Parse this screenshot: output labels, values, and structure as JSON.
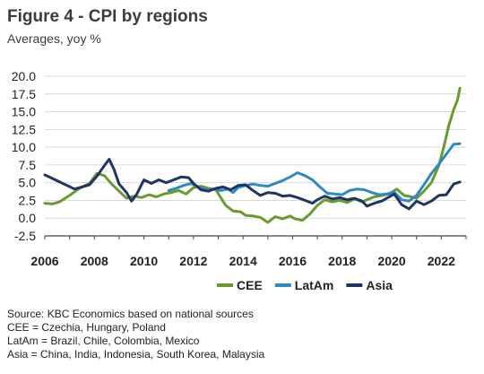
{
  "header": {
    "title": "Figure 4 - CPI by regions",
    "subtitle": "Averages, yoy %"
  },
  "chart_data": {
    "type": "line",
    "title": "Figure 4 - CPI by regions",
    "subtitle": "Averages, yoy %",
    "xlabel": "",
    "ylabel": "",
    "ylim": [
      -2.5,
      20.0
    ],
    "xlim": [
      2006,
      2023
    ],
    "yticks": [
      "20.0",
      "17.5",
      "15.0",
      "12.5",
      "10.0",
      "7.5",
      "5.0",
      "2.5",
      "0.0",
      "-2.5"
    ],
    "xticks": [
      "2006",
      "2008",
      "2010",
      "2012",
      "2014",
      "2016",
      "2018",
      "2020",
      "2022"
    ],
    "grid": "horizontal",
    "legend_position": "bottom",
    "series": [
      {
        "name": "CEE",
        "color": "#6a9a2e",
        "points": [
          [
            2006.0,
            2.1
          ],
          [
            2006.3,
            2.0
          ],
          [
            2006.6,
            2.3
          ],
          [
            2007.0,
            3.2
          ],
          [
            2007.4,
            4.2
          ],
          [
            2007.8,
            4.9
          ],
          [
            2008.1,
            6.3
          ],
          [
            2008.4,
            6.0
          ],
          [
            2008.7,
            4.8
          ],
          [
            2009.0,
            3.8
          ],
          [
            2009.3,
            2.8
          ],
          [
            2009.6,
            3.1
          ],
          [
            2009.9,
            2.9
          ],
          [
            2010.2,
            3.3
          ],
          [
            2010.5,
            3.0
          ],
          [
            2010.8,
            3.4
          ],
          [
            2011.1,
            3.6
          ],
          [
            2011.4,
            3.9
          ],
          [
            2011.7,
            3.4
          ],
          [
            2012.0,
            4.3
          ],
          [
            2012.3,
            4.5
          ],
          [
            2012.6,
            4.2
          ],
          [
            2012.9,
            4.0
          ],
          [
            2013.1,
            2.9
          ],
          [
            2013.3,
            1.8
          ],
          [
            2013.6,
            1.0
          ],
          [
            2013.9,
            0.9
          ],
          [
            2014.1,
            0.4
          ],
          [
            2014.4,
            0.3
          ],
          [
            2014.7,
            0.1
          ],
          [
            2015.0,
            -0.6
          ],
          [
            2015.3,
            0.2
          ],
          [
            2015.6,
            -0.1
          ],
          [
            2015.9,
            0.3
          ],
          [
            2016.1,
            -0.1
          ],
          [
            2016.4,
            -0.3
          ],
          [
            2016.7,
            0.6
          ],
          [
            2017.0,
            1.8
          ],
          [
            2017.3,
            2.6
          ],
          [
            2017.6,
            2.3
          ],
          [
            2017.9,
            2.5
          ],
          [
            2018.2,
            2.2
          ],
          [
            2018.5,
            2.7
          ],
          [
            2018.8,
            2.3
          ],
          [
            2019.0,
            2.6
          ],
          [
            2019.3,
            3.0
          ],
          [
            2019.6,
            3.2
          ],
          [
            2019.9,
            3.4
          ],
          [
            2020.2,
            4.1
          ],
          [
            2020.5,
            3.2
          ],
          [
            2020.8,
            3.0
          ],
          [
            2021.0,
            2.8
          ],
          [
            2021.3,
            3.8
          ],
          [
            2021.6,
            5.0
          ],
          [
            2021.9,
            7.4
          ],
          [
            2022.1,
            10.0
          ],
          [
            2022.3,
            13.0
          ],
          [
            2022.5,
            15.3
          ],
          [
            2022.65,
            16.6
          ],
          [
            2022.75,
            18.3
          ]
        ]
      },
      {
        "name": "LatAm",
        "color": "#2e8bbf",
        "points": [
          [
            2011.0,
            3.9
          ],
          [
            2011.3,
            4.2
          ],
          [
            2011.6,
            4.6
          ],
          [
            2011.9,
            4.9
          ],
          [
            2012.2,
            4.4
          ],
          [
            2012.5,
            4.0
          ],
          [
            2012.8,
            4.1
          ],
          [
            2013.1,
            3.9
          ],
          [
            2013.4,
            4.1
          ],
          [
            2013.6,
            3.6
          ],
          [
            2013.8,
            4.3
          ],
          [
            2014.1,
            4.6
          ],
          [
            2014.4,
            4.8
          ],
          [
            2014.7,
            4.6
          ],
          [
            2015.0,
            4.5
          ],
          [
            2015.3,
            4.9
          ],
          [
            2015.6,
            5.3
          ],
          [
            2015.9,
            5.8
          ],
          [
            2016.2,
            6.4
          ],
          [
            2016.5,
            6.0
          ],
          [
            2016.8,
            5.4
          ],
          [
            2017.1,
            4.4
          ],
          [
            2017.4,
            3.5
          ],
          [
            2017.7,
            3.4
          ],
          [
            2018.0,
            3.3
          ],
          [
            2018.3,
            3.9
          ],
          [
            2018.6,
            4.1
          ],
          [
            2018.9,
            4.0
          ],
          [
            2019.2,
            3.6
          ],
          [
            2019.5,
            3.3
          ],
          [
            2019.8,
            3.4
          ],
          [
            2020.1,
            3.7
          ],
          [
            2020.4,
            2.6
          ],
          [
            2020.7,
            2.4
          ],
          [
            2021.0,
            3.2
          ],
          [
            2021.3,
            4.7
          ],
          [
            2021.6,
            6.3
          ],
          [
            2021.9,
            7.6
          ],
          [
            2022.2,
            9.0
          ],
          [
            2022.5,
            10.4
          ],
          [
            2022.75,
            10.5
          ]
        ]
      },
      {
        "name": "Asia",
        "color": "#1f3564",
        "points": [
          [
            2006.0,
            6.1
          ],
          [
            2006.3,
            5.6
          ],
          [
            2006.6,
            5.1
          ],
          [
            2006.9,
            4.6
          ],
          [
            2007.2,
            4.1
          ],
          [
            2007.5,
            4.4
          ],
          [
            2007.8,
            4.7
          ],
          [
            2008.1,
            5.9
          ],
          [
            2008.4,
            7.4
          ],
          [
            2008.6,
            8.3
          ],
          [
            2008.8,
            6.8
          ],
          [
            2009.0,
            4.8
          ],
          [
            2009.3,
            3.6
          ],
          [
            2009.5,
            2.4
          ],
          [
            2009.7,
            3.3
          ],
          [
            2010.0,
            5.4
          ],
          [
            2010.3,
            4.9
          ],
          [
            2010.6,
            5.4
          ],
          [
            2010.9,
            5.0
          ],
          [
            2011.2,
            5.4
          ],
          [
            2011.5,
            5.8
          ],
          [
            2011.8,
            5.7
          ],
          [
            2012.0,
            4.9
          ],
          [
            2012.3,
            4.0
          ],
          [
            2012.6,
            3.8
          ],
          [
            2012.9,
            4.2
          ],
          [
            2013.2,
            4.4
          ],
          [
            2013.5,
            4.0
          ],
          [
            2013.8,
            4.6
          ],
          [
            2014.1,
            4.7
          ],
          [
            2014.4,
            3.9
          ],
          [
            2014.7,
            3.2
          ],
          [
            2015.0,
            3.6
          ],
          [
            2015.3,
            3.5
          ],
          [
            2015.6,
            3.1
          ],
          [
            2015.9,
            3.2
          ],
          [
            2016.2,
            2.9
          ],
          [
            2016.5,
            2.5
          ],
          [
            2016.8,
            2.1
          ],
          [
            2017.0,
            2.6
          ],
          [
            2017.3,
            3.1
          ],
          [
            2017.6,
            2.7
          ],
          [
            2017.9,
            2.9
          ],
          [
            2018.2,
            2.6
          ],
          [
            2018.5,
            2.8
          ],
          [
            2018.8,
            2.4
          ],
          [
            2019.0,
            1.7
          ],
          [
            2019.3,
            2.1
          ],
          [
            2019.6,
            2.4
          ],
          [
            2019.9,
            3.0
          ],
          [
            2020.1,
            3.4
          ],
          [
            2020.4,
            1.9
          ],
          [
            2020.7,
            1.3
          ],
          [
            2021.0,
            2.4
          ],
          [
            2021.3,
            1.9
          ],
          [
            2021.6,
            2.4
          ],
          [
            2021.9,
            3.2
          ],
          [
            2022.2,
            3.3
          ],
          [
            2022.5,
            4.8
          ],
          [
            2022.75,
            5.1
          ]
        ]
      }
    ]
  },
  "notes": {
    "source": "Source: KBC Economics based on national sources",
    "cee": "CEE = Czechia, Hungary, Poland",
    "latam": "LatAm = Brazil, Chile, Colombia, Mexico",
    "asia": "Asia = China, India, Indonesia, South Korea, Malaysia"
  }
}
